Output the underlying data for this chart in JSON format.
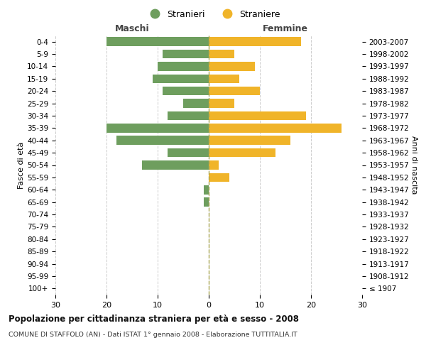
{
  "age_groups": [
    "0-4",
    "5-9",
    "10-14",
    "15-19",
    "20-24",
    "25-29",
    "30-34",
    "35-39",
    "40-44",
    "45-49",
    "50-54",
    "55-59",
    "60-64",
    "65-69",
    "70-74",
    "75-79",
    "80-84",
    "85-89",
    "90-94",
    "95-99",
    "100+"
  ],
  "birth_years": [
    "2003-2007",
    "1998-2002",
    "1993-1997",
    "1988-1992",
    "1983-1987",
    "1978-1982",
    "1973-1977",
    "1968-1972",
    "1963-1967",
    "1958-1962",
    "1953-1957",
    "1948-1952",
    "1943-1947",
    "1938-1942",
    "1933-1937",
    "1928-1932",
    "1923-1927",
    "1918-1922",
    "1913-1917",
    "1908-1912",
    "≤ 1907"
  ],
  "males": [
    20,
    9,
    10,
    11,
    9,
    5,
    8,
    20,
    18,
    8,
    13,
    0,
    1,
    1,
    0,
    0,
    0,
    0,
    0,
    0,
    0
  ],
  "females": [
    18,
    5,
    9,
    6,
    10,
    5,
    19,
    26,
    16,
    13,
    2,
    4,
    0,
    0,
    0,
    0,
    0,
    0,
    0,
    0,
    0
  ],
  "male_color": "#6e9e5e",
  "female_color": "#f0b429",
  "male_label": "Stranieri",
  "female_label": "Straniere",
  "xlim": 30,
  "title": "Popolazione per cittadinanza straniera per età e sesso - 2008",
  "subtitle": "COMUNE DI STAFFOLO (AN) - Dati ISTAT 1° gennaio 2008 - Elaborazione TUTTITALIA.IT",
  "ylabel_left": "Fasce di età",
  "ylabel_right": "Anni di nascita",
  "header_left": "Maschi",
  "header_right": "Femmine",
  "background_color": "#ffffff",
  "grid_color": "#cccccc"
}
